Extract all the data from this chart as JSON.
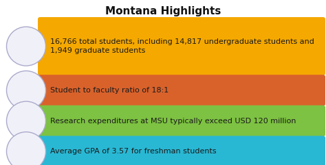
{
  "title": "Montana Highlights",
  "title_fontsize": 11,
  "title_fontweight": "bold",
  "background_color": "#ffffff",
  "bars": [
    {
      "text": "16,766 total students, including 14,817 undergraduate students and\n1,949 graduate students",
      "color": "#F5A800",
      "text_color": "#1a1a1a",
      "two_lines": true
    },
    {
      "text": "Student to faculty ratio of 18:1",
      "color": "#D9622B",
      "text_color": "#1a1a1a",
      "two_lines": false
    },
    {
      "text": "Research expenditures at MSU typically exceed USD 120 million",
      "color": "#7DC242",
      "text_color": "#1a1a1a",
      "two_lines": false
    },
    {
      "text": "Average GPA of 3.57 for freshman students",
      "color": "#29B8D4",
      "text_color": "#1a1a1a",
      "two_lines": false
    }
  ],
  "circle_facecolor": "#f0f0f8",
  "circle_edgecolor": "#aaaacc",
  "circle_linewidth": 1.0,
  "text_fontsize": 8.0,
  "fig_width": 4.74,
  "fig_height": 2.41,
  "dpi": 100
}
